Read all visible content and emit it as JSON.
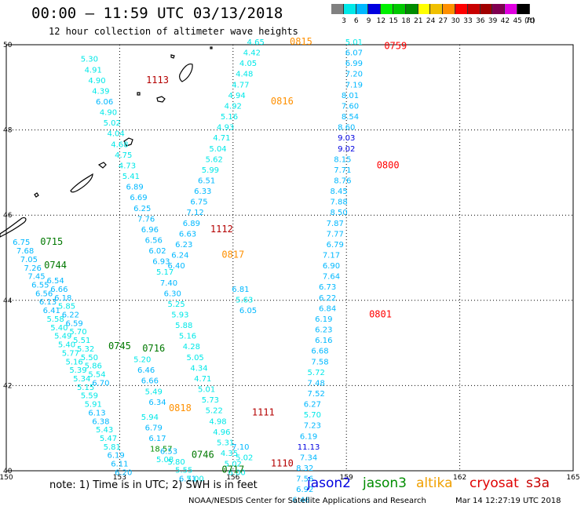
{
  "header": {
    "title": "00:00 – 11:59 UTC 03/13/2018",
    "subtitle": "12 hour collection of altimeter wave heights"
  },
  "colorbar": {
    "unit_label": "(ft)",
    "colors": [
      "#808080",
      "#00e8e8",
      "#00b8ff",
      "#0000e0",
      "#00f000",
      "#00c800",
      "#008c00",
      "#ffff00",
      "#f0c000",
      "#ff9000",
      "#ff0000",
      "#c80000",
      "#a00000",
      "#800050",
      "#e000e0",
      "#000000"
    ],
    "labels": [
      "3",
      "6",
      "9",
      "12",
      "15",
      "18",
      "21",
      "24",
      "27",
      "30",
      "33",
      "36",
      "39",
      "42",
      "45",
      "70"
    ]
  },
  "map_axes": {
    "x_ticks": [
      "150",
      "153",
      "156",
      "159",
      "162",
      "165"
    ],
    "y_ticks": [
      "50",
      "48",
      "46",
      "44",
      "42",
      "40"
    ],
    "lon_range": [
      150,
      165
    ],
    "lat_range": [
      40,
      50
    ]
  },
  "passes": [
    {
      "time": "1113",
      "color": "#b40000",
      "label_at": [
        154.0,
        49.1
      ],
      "points": [
        [
          "5.30",
          152.2,
          49.6
        ],
        [
          "4.91",
          152.3,
          49.35
        ],
        [
          "4.90",
          152.4,
          49.1
        ],
        [
          "4.39",
          152.5,
          48.85
        ],
        [
          "6.06",
          152.6,
          48.6
        ],
        [
          "4.90",
          152.7,
          48.35
        ],
        [
          "5.02",
          152.8,
          48.1
        ],
        [
          "4.04",
          152.9,
          47.85
        ],
        [
          "4.68",
          153.0,
          47.6
        ],
        [
          "4.75",
          153.1,
          47.35
        ],
        [
          "4.73",
          153.2,
          47.1
        ],
        [
          "5.41",
          153.3,
          46.85
        ],
        [
          "6.89",
          153.4,
          46.6
        ],
        [
          "6.69",
          153.5,
          46.35
        ],
        [
          "6.25",
          153.6,
          46.1
        ],
        [
          "7.76",
          153.7,
          45.85
        ],
        [
          "6.96",
          153.8,
          45.6
        ],
        [
          "6.56",
          153.9,
          45.35
        ],
        [
          "6.02",
          154.0,
          45.1
        ],
        [
          "6.93",
          154.1,
          44.85
        ],
        [
          "5.17",
          154.2,
          44.6
        ],
        [
          "7.40",
          154.3,
          44.35
        ],
        [
          "6.30",
          154.4,
          44.1
        ],
        [
          "5.25",
          154.5,
          43.85
        ],
        [
          "5.93",
          154.6,
          43.6
        ],
        [
          "5.88",
          154.7,
          43.35
        ],
        [
          "5.16",
          154.8,
          43.1
        ],
        [
          "4.28",
          154.9,
          42.85
        ],
        [
          "5.05",
          155.0,
          42.6
        ],
        [
          "4.34",
          155.1,
          42.35
        ],
        [
          "4.71",
          155.2,
          42.1
        ],
        [
          "5.01",
          155.3,
          41.85
        ],
        [
          "5.73",
          155.4,
          41.6
        ],
        [
          "5.22",
          155.5,
          41.35
        ]
      ]
    },
    {
      "time": "1112",
      "color": "#b40000",
      "label_at": [
        155.7,
        45.6
      ],
      "points": [
        [
          "6.81",
          156.2,
          44.2
        ],
        [
          "5.63",
          156.3,
          43.95
        ],
        [
          "6.05",
          156.4,
          43.7
        ]
      ]
    },
    {
      "time": "1111",
      "color": "#b40000",
      "label_at": [
        156.8,
        41.3
      ],
      "points": [
        [
          "4.98",
          155.6,
          41.1
        ],
        [
          "4.96",
          155.7,
          40.85
        ],
        [
          "5.31",
          155.8,
          40.6
        ],
        [
          "4.35",
          155.9,
          40.35
        ],
        [
          "5.02",
          156.0,
          40.1
        ],
        [
          "6.00",
          156.1,
          39.9
        ]
      ]
    },
    {
      "time": "1110",
      "color": "#b40000",
      "label_at": [
        157.3,
        40.1
      ],
      "points": [
        [
          "7.10",
          156.2,
          40.5
        ],
        [
          "5.02",
          156.3,
          40.25
        ]
      ]
    },
    {
      "time": "0815",
      "color": "#ff9000",
      "label_at": [
        157.8,
        50.0
      ],
      "points": [
        [
          "4.65",
          156.6,
          50.0
        ],
        [
          "4.42",
          156.5,
          49.75
        ],
        [
          "4.05",
          156.4,
          49.5
        ],
        [
          "4.48",
          156.3,
          49.25
        ],
        [
          "4.77",
          156.2,
          49.0
        ],
        [
          "4.94",
          156.1,
          48.75
        ],
        [
          "4.92",
          156.0,
          48.5
        ],
        [
          "5.16",
          155.9,
          48.25
        ],
        [
          "4.93",
          155.8,
          48.0
        ],
        [
          "4.71",
          155.7,
          47.75
        ],
        [
          "5.04",
          155.6,
          47.5
        ],
        [
          "5.62",
          155.5,
          47.25
        ],
        [
          "5.99",
          155.4,
          47.0
        ],
        [
          "6.51",
          155.3,
          46.75
        ],
        [
          "6.33",
          155.2,
          46.5
        ],
        [
          "6.75",
          155.1,
          46.25
        ],
        [
          "7.12",
          155.0,
          46.0
        ],
        [
          "6.89",
          154.9,
          45.75
        ],
        [
          "6.63",
          154.8,
          45.5
        ],
        [
          "6.23",
          154.7,
          45.25
        ],
        [
          "6.24",
          154.6,
          45.0
        ],
        [
          "6.40",
          154.5,
          44.75
        ]
      ]
    },
    {
      "time": "0816",
      "color": "#ff9000",
      "label_at": [
        157.3,
        48.6
      ],
      "points": []
    },
    {
      "time": "0817",
      "color": "#ff9000",
      "label_at": [
        156.0,
        45.0
      ],
      "points": []
    },
    {
      "time": "0818",
      "color": "#ff9000",
      "label_at": [
        154.6,
        41.4
      ],
      "points": [
        [
          "5.94",
          153.8,
          41.2
        ],
        [
          "6.79",
          153.9,
          40.95
        ],
        [
          "6.17",
          154.0,
          40.7
        ],
        [
          "18.57",
          154.1,
          40.45
        ],
        [
          "5.08",
          154.2,
          40.2
        ]
      ]
    },
    {
      "time": "0759",
      "color": "#ff0000",
      "label_at": [
        160.3,
        49.9
      ],
      "points": [
        [
          "5.01",
          159.2,
          50.0
        ],
        [
          "6.07",
          159.2,
          49.75
        ],
        [
          "6.99",
          159.2,
          49.5
        ],
        [
          "7.20",
          159.2,
          49.25
        ],
        [
          "7.19",
          159.2,
          49.0
        ],
        [
          "8.01",
          159.1,
          48.75
        ],
        [
          "7.60",
          159.1,
          48.5
        ],
        [
          "8.54",
          159.1,
          48.25
        ],
        [
          "8.60",
          159.0,
          48.0
        ],
        [
          "9.03",
          159.0,
          47.75
        ],
        [
          "9.02",
          159.0,
          47.5
        ],
        [
          "8.15",
          158.9,
          47.25
        ],
        [
          "7.71",
          158.9,
          47.0
        ],
        [
          "8.76",
          158.9,
          46.75
        ],
        [
          "8.45",
          158.8,
          46.5
        ],
        [
          "7.88",
          158.8,
          46.25
        ],
        [
          "8.50",
          158.8,
          46.0
        ],
        [
          "7.87",
          158.7,
          45.75
        ],
        [
          "7.77",
          158.7,
          45.5
        ],
        [
          "6.79",
          158.7,
          45.25
        ],
        [
          "7.17",
          158.6,
          45.0
        ],
        [
          "6.90",
          158.6,
          44.75
        ],
        [
          "7.64",
          158.6,
          44.5
        ],
        [
          "6.73",
          158.5,
          44.25
        ],
        [
          "6.22",
          158.5,
          44.0
        ],
        [
          "6.84",
          158.5,
          43.75
        ],
        [
          "6.19",
          158.4,
          43.5
        ],
        [
          "6.23",
          158.4,
          43.25
        ],
        [
          "6.16",
          158.4,
          43.0
        ]
      ]
    },
    {
      "time": "0800",
      "color": "#ff0000",
      "label_at": [
        160.1,
        47.1
      ],
      "points": []
    },
    {
      "time": "0801",
      "color": "#ff0000",
      "label_at": [
        159.9,
        43.6
      ],
      "points": [
        [
          "6.68",
          158.3,
          42.75
        ],
        [
          "7.58",
          158.3,
          42.5
        ],
        [
          "5.72",
          158.2,
          42.25
        ],
        [
          "7.48",
          158.2,
          42.0
        ],
        [
          "7.52",
          158.2,
          41.75
        ],
        [
          "6.27",
          158.1,
          41.5
        ],
        [
          "5.70",
          158.1,
          41.25
        ],
        [
          "7.23",
          158.1,
          41.0
        ],
        [
          "6.19",
          158.0,
          40.75
        ],
        [
          "11.13",
          158.0,
          40.5
        ],
        [
          "7.34",
          158.0,
          40.25
        ],
        [
          "8.32",
          157.9,
          40.0
        ],
        [
          "7.56",
          157.9,
          39.75
        ],
        [
          "6.92",
          157.9,
          39.5
        ],
        [
          "6.46",
          157.8,
          39.25
        ]
      ]
    },
    {
      "time": "0715",
      "color": "#007800",
      "label_at": [
        151.2,
        45.3
      ],
      "points": [
        [
          "6.75",
          150.4,
          45.3
        ],
        [
          "7.68",
          150.5,
          45.1
        ],
        [
          "7.05",
          150.6,
          44.9
        ],
        [
          "7.26",
          150.7,
          44.7
        ],
        [
          "7.45",
          150.8,
          44.5
        ],
        [
          "6.55",
          150.9,
          44.3
        ],
        [
          "6.56",
          151.0,
          44.1
        ],
        [
          "6.13",
          151.1,
          43.9
        ],
        [
          "6.41",
          151.2,
          43.7
        ],
        [
          "5.58",
          151.3,
          43.5
        ],
        [
          "5.40",
          151.4,
          43.3
        ],
        [
          "5.49",
          151.5,
          43.1
        ],
        [
          "5.40",
          151.6,
          42.9
        ],
        [
          "5.77",
          151.7,
          42.7
        ],
        [
          "5.16",
          151.8,
          42.5
        ],
        [
          "5.39",
          151.9,
          42.3
        ],
        [
          "5.34",
          152.0,
          42.1
        ],
        [
          "5.15",
          152.1,
          41.9
        ],
        [
          "5.59",
          152.2,
          41.7
        ],
        [
          "5.91",
          152.3,
          41.5
        ],
        [
          "6.13",
          152.4,
          41.3
        ],
        [
          "6.38",
          152.5,
          41.1
        ],
        [
          "5.43",
          152.6,
          40.9
        ],
        [
          "5.47",
          152.7,
          40.7
        ],
        [
          "5.81",
          152.8,
          40.5
        ],
        [
          "6.19",
          152.9,
          40.3
        ],
        [
          "6.11",
          153.0,
          40.1
        ],
        [
          "6.20",
          153.1,
          39.9
        ]
      ]
    },
    {
      "time": "0744",
      "color": "#007800",
      "label_at": [
        151.3,
        44.75
      ],
      "points": [
        [
          "6.54",
          151.3,
          44.4
        ],
        [
          "6.66",
          151.4,
          44.2
        ],
        [
          "6.18",
          151.5,
          44.0
        ],
        [
          "5.85",
          151.6,
          43.8
        ],
        [
          "6.22",
          151.7,
          43.6
        ],
        [
          "6.59",
          151.8,
          43.4
        ],
        [
          "5.70",
          151.9,
          43.2
        ],
        [
          "5.51",
          152.0,
          43.0
        ],
        [
          "5.32",
          152.1,
          42.8
        ],
        [
          "5.50",
          152.2,
          42.6
        ],
        [
          "5.86",
          152.3,
          42.4
        ],
        [
          "5.54",
          152.4,
          42.2
        ],
        [
          "6.70",
          152.5,
          42.0
        ]
      ]
    },
    {
      "time": "0745",
      "color": "#007800",
      "label_at": [
        153.0,
        42.85
      ],
      "points": []
    },
    {
      "time": "0716",
      "color": "#007800",
      "label_at": [
        153.9,
        42.8
      ],
      "points": [
        [
          "5.20",
          153.6,
          42.55
        ],
        [
          "6.46",
          153.7,
          42.3
        ],
        [
          "6.66",
          153.8,
          42.05
        ],
        [
          "5.49",
          153.9,
          41.8
        ],
        [
          "6.34",
          154.0,
          41.55
        ]
      ]
    },
    {
      "time": "0746",
      "color": "#007800",
      "label_at": [
        155.2,
        40.3
      ],
      "points": [
        [
          "6.53",
          154.3,
          40.4
        ],
        [
          "5.80",
          154.5,
          40.15
        ],
        [
          "5.55",
          154.7,
          39.95
        ],
        [
          "6.71",
          154.8,
          39.75
        ],
        [
          "5.00",
          155.0,
          39.75
        ]
      ]
    },
    {
      "time": "0717",
      "color": "#007800",
      "label_at": [
        156.0,
        39.95
      ],
      "points": []
    }
  ],
  "note": "note:  1) Time is in UTC;  2) SWH is in feet",
  "legend": [
    {
      "name": "jason2",
      "color": "#0000e0"
    },
    {
      "name": "jason3",
      "color": "#008c00"
    },
    {
      "name": "altika",
      "color": "#f0a000"
    },
    {
      "name": "cryosat",
      "color": "#e00000"
    },
    {
      "name": "s3a",
      "color": "#c80000"
    }
  ],
  "credit": "NOAA/NESDIS Center for Satellite Applications and Research",
  "timestamp": "Mar 14 12:27:19 UTC 2018"
}
